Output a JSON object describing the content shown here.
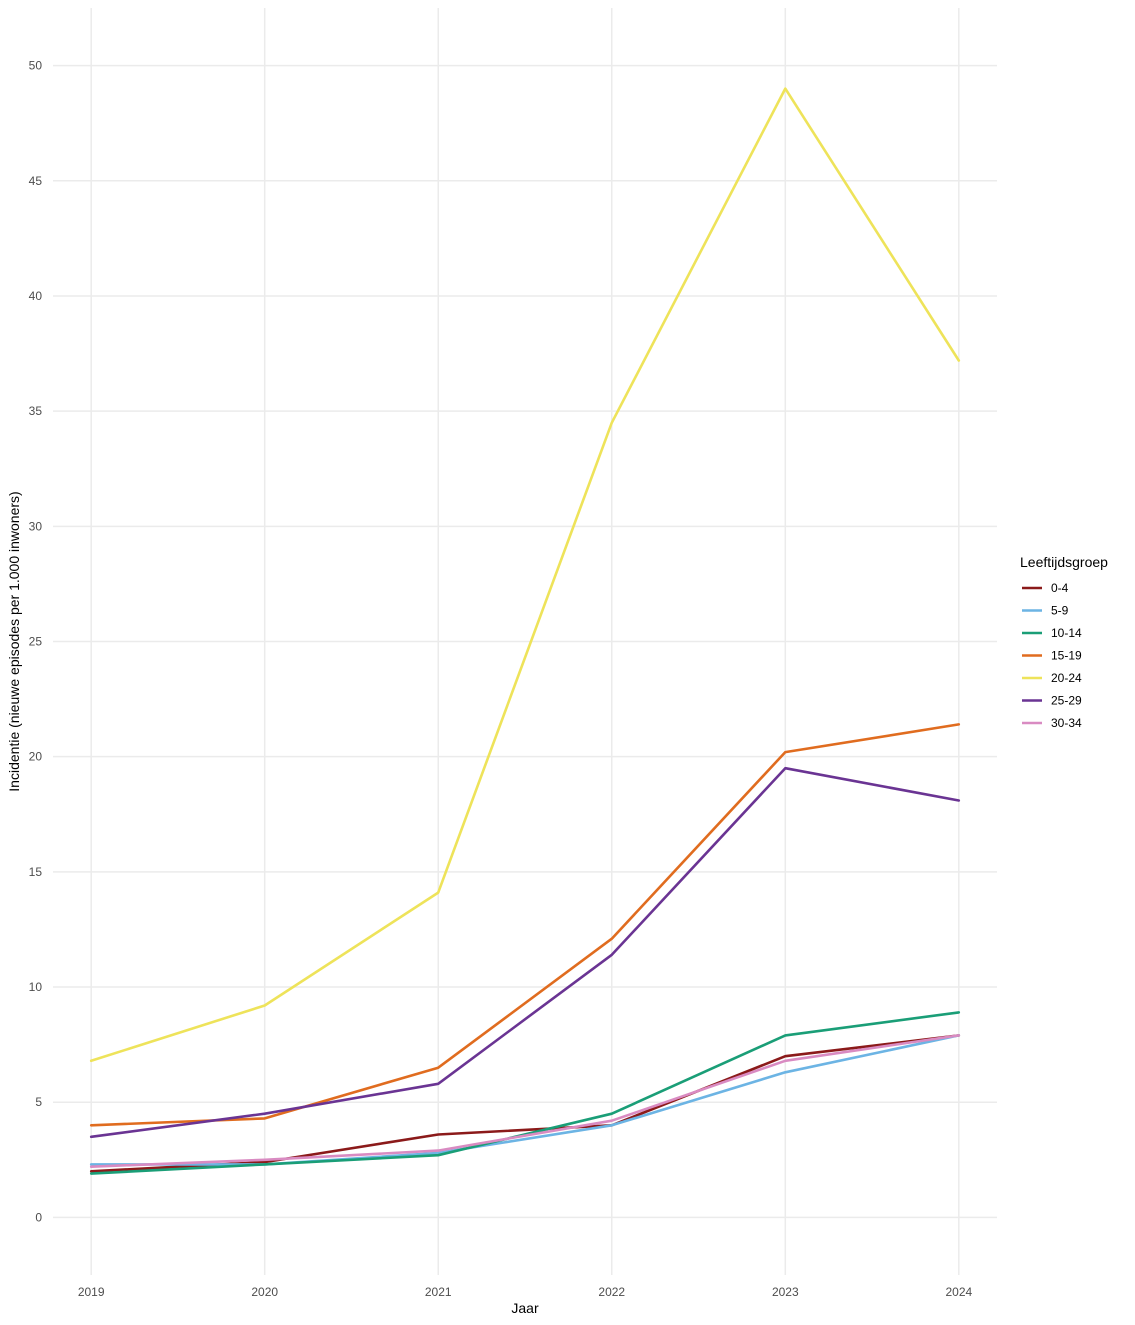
{
  "chart_data": {
    "type": "line",
    "title": "",
    "xlabel": "Jaar",
    "ylabel": "Incidentie (nieuwe episodes per 1.000 inwoners)",
    "x": [
      2019,
      2020,
      2021,
      2022,
      2023,
      2024
    ],
    "x_tick_labels": [
      "2019",
      "2020",
      "2021",
      "2022",
      "2023",
      "2024"
    ],
    "y_ticks": [
      0,
      5,
      10,
      15,
      20,
      25,
      30,
      35,
      40,
      45,
      50
    ],
    "ylim": [
      -2.5,
      52.5
    ],
    "grid": true,
    "legend": {
      "title": "Leeftijdsgroep",
      "position": "right"
    },
    "series": [
      {
        "name": "0-4",
        "color": "#8b1a1a",
        "values": [
          2.0,
          2.4,
          3.6,
          4.0,
          7.0,
          7.9
        ]
      },
      {
        "name": "5-9",
        "color": "#6cb4e4",
        "values": [
          2.3,
          2.3,
          2.8,
          4.0,
          6.3,
          7.9
        ]
      },
      {
        "name": "10-14",
        "color": "#1a9e77",
        "values": [
          1.9,
          2.3,
          2.7,
          4.5,
          7.9,
          8.9
        ]
      },
      {
        "name": "15-19",
        "color": "#e06c1f",
        "values": [
          4.0,
          4.3,
          6.5,
          12.1,
          20.2,
          21.4
        ]
      },
      {
        "name": "20-24",
        "color": "#eee35a",
        "values": [
          6.8,
          9.2,
          14.1,
          34.5,
          49.0,
          37.2
        ]
      },
      {
        "name": "25-29",
        "color": "#6a3493",
        "values": [
          3.5,
          4.5,
          5.8,
          11.4,
          19.5,
          18.1
        ]
      },
      {
        "name": "30-34",
        "color": "#d98bc2",
        "values": [
          2.2,
          2.5,
          2.9,
          4.2,
          6.8,
          7.9
        ]
      }
    ]
  }
}
